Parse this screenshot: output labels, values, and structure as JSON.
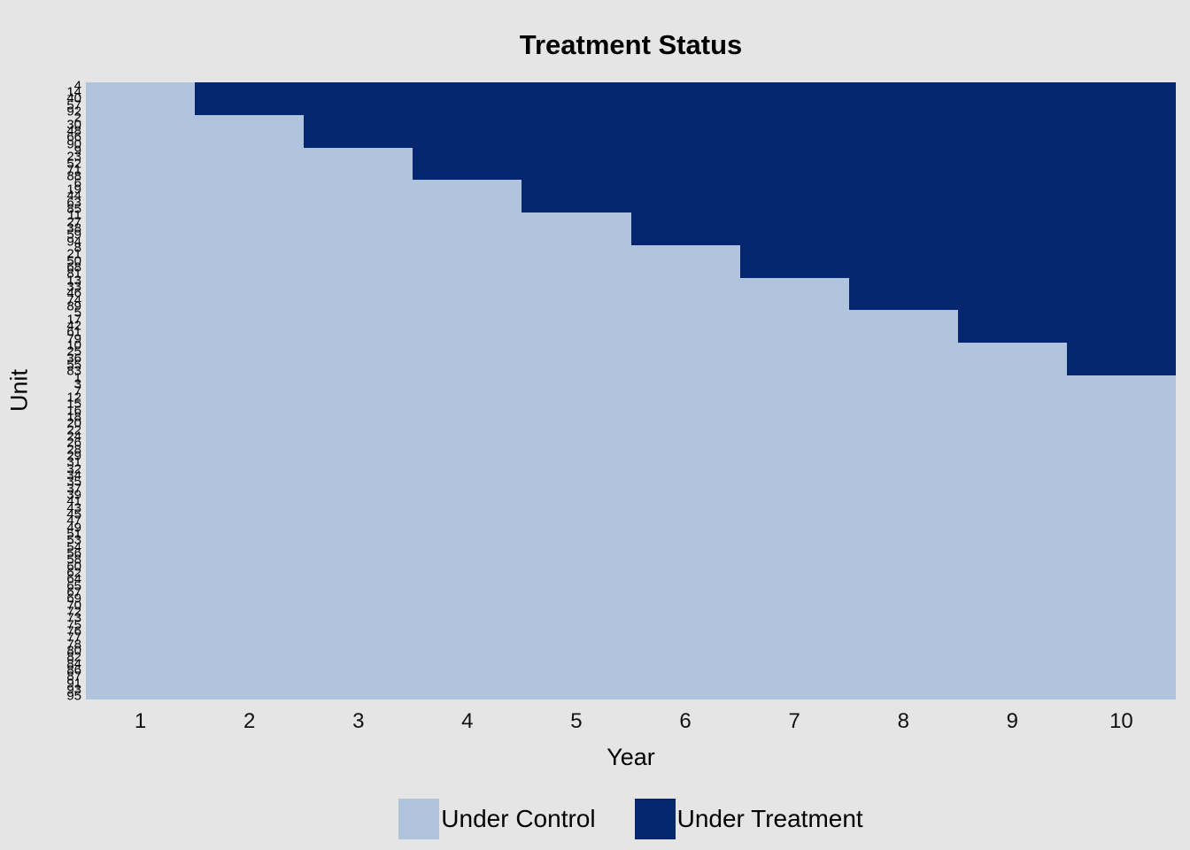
{
  "chart_data": {
    "type": "heatmap",
    "title": "Treatment Status",
    "xlabel": "Year",
    "ylabel": "Unit",
    "x_ticks": [
      "1",
      "2",
      "3",
      "4",
      "5",
      "6",
      "7",
      "8",
      "9",
      "10"
    ],
    "n_years": 10,
    "x_range": [
      0.5,
      10.5
    ],
    "n_units": 95,
    "grid": false,
    "y_tick_labels_overlapping": true,
    "colors": {
      "control": "#B0C4DE",
      "treated": "#06266F",
      "background": "#E5E5E5",
      "text": "#000000"
    },
    "legend": {
      "position": "bottom",
      "entries": [
        {
          "label": "Under Control",
          "color": "#B0C4DE"
        },
        {
          "label": "Under Treatment",
          "color": "#06266F"
        }
      ]
    },
    "cohorts": [
      {
        "first_treated_year": 2,
        "units": [
          4,
          14,
          40,
          57,
          92
        ]
      },
      {
        "first_treated_year": 3,
        "units": [
          2,
          30,
          48,
          66,
          90
        ]
      },
      {
        "first_treated_year": 4,
        "units": [
          9,
          23,
          52,
          71,
          88
        ]
      },
      {
        "first_treated_year": 5,
        "units": [
          6,
          19,
          44,
          63,
          85
        ]
      },
      {
        "first_treated_year": 6,
        "units": [
          11,
          27,
          38,
          59,
          94
        ]
      },
      {
        "first_treated_year": 7,
        "units": [
          8,
          21,
          50,
          68,
          81
        ]
      },
      {
        "first_treated_year": 8,
        "units": [
          13,
          33,
          46,
          74,
          89
        ]
      },
      {
        "first_treated_year": 9,
        "units": [
          5,
          17,
          42,
          61,
          79
        ]
      },
      {
        "first_treated_year": 10,
        "units": [
          10,
          25,
          36,
          55,
          83
        ]
      },
      {
        "first_treated_year": null,
        "units": [
          1,
          3,
          7,
          12,
          15,
          16,
          18,
          20,
          22,
          24,
          26,
          28,
          29,
          31,
          32,
          34,
          35,
          37,
          39,
          41,
          43,
          45,
          47,
          49,
          51,
          53,
          54,
          56,
          58,
          60,
          62,
          64,
          65,
          67,
          69,
          70,
          72,
          73,
          75,
          76,
          77,
          78,
          80,
          82,
          84,
          86,
          87,
          91,
          93,
          95
        ]
      }
    ]
  }
}
